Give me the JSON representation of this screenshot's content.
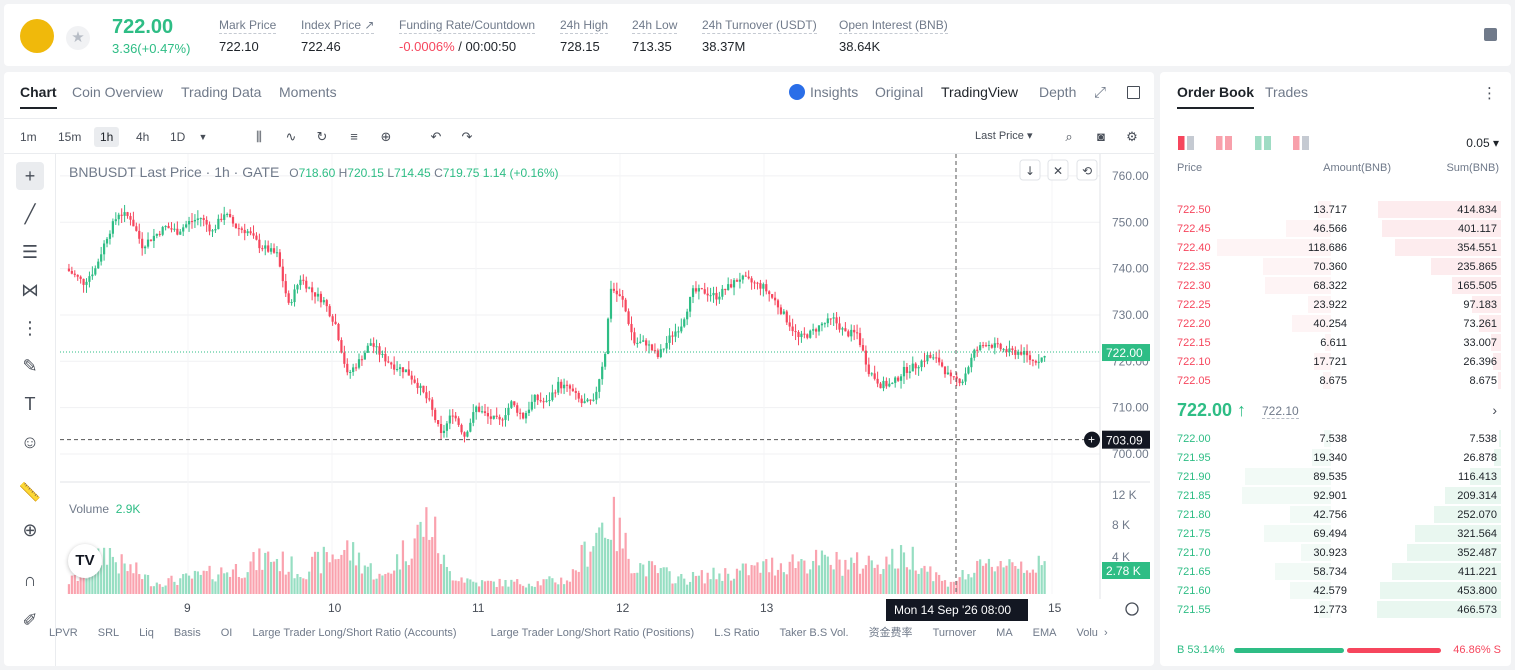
{
  "header": {
    "price": "722.00",
    "change": "3.36(+0.47%)",
    "stats": [
      {
        "label": "Mark Price",
        "value": "722.10"
      },
      {
        "label": "Index Price ↗",
        "value": "722.46"
      },
      {
        "label": "Funding Rate/Countdown",
        "value": "-0.0006%",
        "value2": " / 00:00:50"
      },
      {
        "label": "24h High",
        "value": "728.15"
      },
      {
        "label": "24h Low",
        "value": "713.35"
      },
      {
        "label": "24h Turnover (USDT)",
        "value": "38.37M"
      },
      {
        "label": "Open Interest (BNB)",
        "value": "38.64K"
      }
    ]
  },
  "chart_tabs": [
    "Chart",
    "Coin Overview",
    "Trading Data",
    "Moments"
  ],
  "view_tabs": [
    "Insights",
    "Original",
    "TradingView",
    "Depth"
  ],
  "timeframes": [
    "1m",
    "15m",
    "1h",
    "4h",
    "1D"
  ],
  "price_type": "Last Price",
  "legend": {
    "symbol": "BNBUSDT Last Price · 1h · GATE",
    "o_label": "O",
    "o": "718.60",
    "h_label": "H",
    "h": "720.15",
    "l_label": "L",
    "l": "714.45",
    "c_label": "C",
    "c": "719.75",
    "chg": "1.14 (+0.16%)"
  },
  "volume_label": "Volume",
  "volume_value": "2.9K",
  "crosshair_label": "Mon 14 Sep '26   08:00",
  "last_price_tag": "722.00",
  "cursor_price_tag": "703.09",
  "volume_tag": "2.78 K",
  "indicators": [
    "LPVR",
    "SRL",
    "Liq",
    "Basis",
    "OI",
    "Large Trader Long/Short Ratio (Accounts)",
    "Large Trader Long/Short Ratio (Positions)",
    "L.S Ratio",
    "Taker B.S Vol.",
    "资金费率",
    "Turnover",
    "MA",
    "EMA",
    "Volu"
  ],
  "chart_data": {
    "type": "candlestick",
    "symbol": "BNBUSDT",
    "interval": "1h",
    "y_ticks": [
      "760.00",
      "750.00",
      "740.00",
      "730.00",
      "720.00",
      "710.00",
      "700.00"
    ],
    "ylim": [
      700,
      763
    ],
    "x_ticks": [
      "9",
      "10",
      "11",
      "12",
      "13",
      "15"
    ],
    "volume_ticks": [
      "12 K",
      "8 K",
      "4 K"
    ],
    "anchors": [
      [
        0,
        740
      ],
      [
        6,
        737
      ],
      [
        10,
        740
      ],
      [
        14,
        747
      ],
      [
        18,
        752
      ],
      [
        22,
        751
      ],
      [
        26,
        745
      ],
      [
        30,
        747
      ],
      [
        34,
        749
      ],
      [
        38,
        748
      ],
      [
        42,
        750
      ],
      [
        46,
        751
      ],
      [
        50,
        748
      ],
      [
        54,
        752
      ],
      [
        58,
        749
      ],
      [
        62,
        748
      ],
      [
        66,
        745
      ],
      [
        72,
        743
      ],
      [
        76,
        732
      ],
      [
        80,
        738
      ],
      [
        84,
        735
      ],
      [
        88,
        733
      ],
      [
        92,
        728
      ],
      [
        96,
        717
      ],
      [
        100,
        720
      ],
      [
        104,
        724
      ],
      [
        108,
        721
      ],
      [
        112,
        719
      ],
      [
        116,
        718
      ],
      [
        120,
        715
      ],
      [
        124,
        711
      ],
      [
        128,
        704
      ],
      [
        132,
        709
      ],
      [
        136,
        704
      ],
      [
        140,
        710
      ],
      [
        144,
        708
      ],
      [
        148,
        707
      ],
      [
        152,
        711
      ],
      [
        156,
        708
      ],
      [
        160,
        712
      ],
      [
        164,
        711
      ],
      [
        168,
        715
      ],
      [
        172,
        714
      ],
      [
        176,
        711
      ],
      [
        180,
        711
      ],
      [
        184,
        722
      ],
      [
        186,
        736
      ],
      [
        190,
        733
      ],
      [
        194,
        724
      ],
      [
        198,
        724
      ],
      [
        202,
        721
      ],
      [
        206,
        725
      ],
      [
        210,
        728
      ],
      [
        214,
        735
      ],
      [
        218,
        735
      ],
      [
        222,
        734
      ],
      [
        226,
        736
      ],
      [
        230,
        738
      ],
      [
        234,
        737
      ],
      [
        238,
        736
      ],
      [
        242,
        733
      ],
      [
        246,
        729
      ],
      [
        250,
        725
      ],
      [
        254,
        726
      ],
      [
        258,
        728
      ],
      [
        262,
        729
      ],
      [
        266,
        726
      ],
      [
        270,
        726
      ],
      [
        274,
        718
      ],
      [
        278,
        715
      ],
      [
        282,
        715
      ],
      [
        286,
        718
      ],
      [
        290,
        719
      ],
      [
        294,
        721
      ],
      [
        298,
        720
      ],
      [
        302,
        716
      ],
      [
        306,
        716
      ],
      [
        310,
        722
      ],
      [
        314,
        724
      ],
      [
        318,
        723
      ],
      [
        322,
        722
      ],
      [
        326,
        722
      ],
      [
        330,
        720
      ],
      [
        334,
        721
      ]
    ],
    "volume_anchors": [
      [
        0,
        1.5
      ],
      [
        8,
        3
      ],
      [
        14,
        6
      ],
      [
        18,
        4
      ],
      [
        24,
        3
      ],
      [
        30,
        1.5
      ],
      [
        40,
        2
      ],
      [
        60,
        3.5
      ],
      [
        70,
        5
      ],
      [
        80,
        3
      ],
      [
        90,
        5
      ],
      [
        96,
        6
      ],
      [
        108,
        2
      ],
      [
        124,
        10
      ],
      [
        130,
        3
      ],
      [
        140,
        1.5
      ],
      [
        160,
        1.5
      ],
      [
        172,
        2
      ],
      [
        182,
        9
      ],
      [
        186,
        10
      ],
      [
        194,
        4
      ],
      [
        210,
        2
      ],
      [
        230,
        3
      ],
      [
        250,
        4.5
      ],
      [
        270,
        4
      ],
      [
        290,
        5
      ],
      [
        300,
        1.5
      ],
      [
        320,
        4.5
      ],
      [
        334,
        3.5
      ]
    ]
  },
  "orderbook": {
    "tabs": [
      "Order Book",
      "Trades"
    ],
    "precision": "0.05",
    "headers": [
      "Price",
      "Amount(BNB)",
      "Sum(BNB)"
    ],
    "asks": [
      [
        "722.50",
        "13.717",
        "414.834"
      ],
      [
        "722.45",
        "46.566",
        "401.117"
      ],
      [
        "722.40",
        "118.686",
        "354.551"
      ],
      [
        "722.35",
        "70.360",
        "235.865"
      ],
      [
        "722.30",
        "68.322",
        "165.505"
      ],
      [
        "722.25",
        "23.922",
        "97.183"
      ],
      [
        "722.20",
        "40.254",
        "73.261"
      ],
      [
        "722.15",
        "6.611",
        "33.007"
      ],
      [
        "722.10",
        "17.721",
        "26.396"
      ],
      [
        "722.05",
        "8.675",
        "8.675"
      ]
    ],
    "mid_price": "722.00 ↑",
    "mark": "722.10",
    "bids": [
      [
        "722.00",
        "7.538",
        "7.538"
      ],
      [
        "721.95",
        "19.340",
        "26.878"
      ],
      [
        "721.90",
        "89.535",
        "116.413"
      ],
      [
        "721.85",
        "92.901",
        "209.314"
      ],
      [
        "721.80",
        "42.756",
        "252.070"
      ],
      [
        "721.75",
        "69.494",
        "321.564"
      ],
      [
        "721.70",
        "30.923",
        "352.487"
      ],
      [
        "721.65",
        "58.734",
        "411.221"
      ],
      [
        "721.60",
        "42.579",
        "453.800"
      ],
      [
        "721.55",
        "12.773",
        "466.573"
      ]
    ],
    "buy_ratio": "B 53.14%",
    "sell_ratio": "46.86% S",
    "buy_fraction": 0.5314
  },
  "colors": {
    "up": "#2ebd85",
    "down": "#f6465d"
  }
}
